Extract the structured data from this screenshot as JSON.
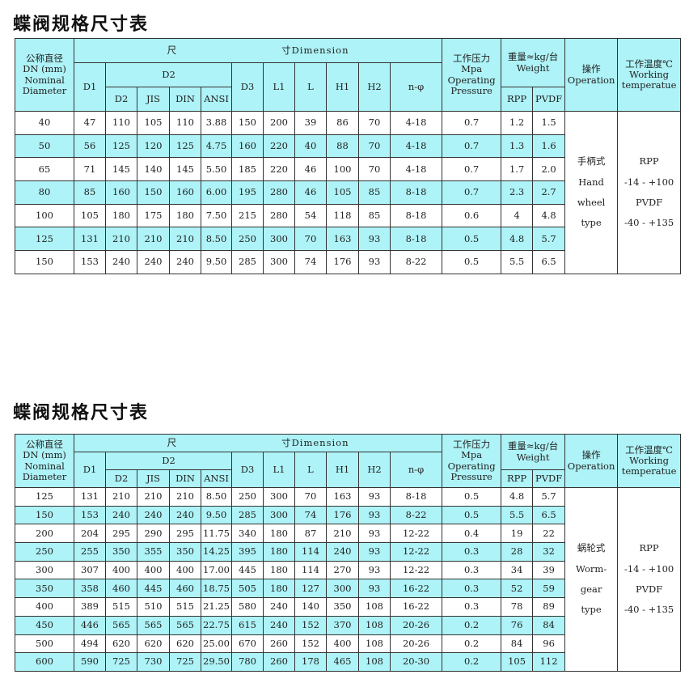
{
  "title": "蝶阀规格尺寸表",
  "header": {
    "dn": [
      "公称直径",
      "DN (mm)",
      "Nominal",
      "Diameter"
    ],
    "dimension_cn": "尺",
    "dimension": "寸Dimension",
    "d1": "D1",
    "d2_group": "D2",
    "d2": "D2",
    "jis": "JIS",
    "din": "DIN",
    "ansi": "ANSI",
    "d3": "D3",
    "l1": "L1",
    "l": "L",
    "h1": "H1",
    "h2": "H2",
    "n_phi": "n-φ",
    "pressure": [
      "工作压力",
      "Mpa",
      "Operating",
      "Pressure"
    ],
    "weight": [
      "重量≈kg/台",
      "Weight"
    ],
    "rpp": "RPP",
    "pvdf": "PVDF",
    "operation": [
      "操作",
      "Operation"
    ],
    "temperature": [
      "工作温度℃",
      "Working",
      "temperatue"
    ]
  },
  "colors": {
    "header_bg": "#aef3f7",
    "alt_row_bg": "#aef3f7"
  },
  "tables": [
    {
      "operation": [
        "手柄式",
        "Hand",
        "wheel",
        "type"
      ],
      "temperature": [
        "RPP",
        "-14 - +100",
        "PVDF",
        "-40 - +135"
      ],
      "rows": [
        [
          "40",
          "47",
          "110",
          "105",
          "110",
          "3.88",
          "150",
          "200",
          "39",
          "86",
          "70",
          "4-18",
          "0.7",
          "1.2",
          "1.5"
        ],
        [
          "50",
          "56",
          "125",
          "120",
          "125",
          "4.75",
          "160",
          "220",
          "40",
          "88",
          "70",
          "4-18",
          "0.7",
          "1.3",
          "1.6"
        ],
        [
          "65",
          "71",
          "145",
          "140",
          "145",
          "5.50",
          "185",
          "220",
          "46",
          "100",
          "70",
          "4-18",
          "0.7",
          "1.7",
          "2.0"
        ],
        [
          "80",
          "85",
          "160",
          "150",
          "160",
          "6.00",
          "195",
          "280",
          "46",
          "105",
          "85",
          "8-18",
          "0.7",
          "2.3",
          "2.7"
        ],
        [
          "100",
          "105",
          "180",
          "175",
          "180",
          "7.50",
          "215",
          "280",
          "54",
          "118",
          "85",
          "8-18",
          "0.6",
          "4",
          "4.8"
        ],
        [
          "125",
          "131",
          "210",
          "210",
          "210",
          "8.50",
          "250",
          "300",
          "70",
          "163",
          "93",
          "8-18",
          "0.5",
          "4.8",
          "5.7"
        ],
        [
          "150",
          "153",
          "240",
          "240",
          "240",
          "9.50",
          "285",
          "300",
          "74",
          "176",
          "93",
          "8-22",
          "0.5",
          "5.5",
          "6.5"
        ]
      ]
    },
    {
      "operation": [
        "蜗轮式",
        "Worm-",
        "gear",
        "type"
      ],
      "temperature": [
        "RPP",
        "-14 - +100",
        "PVDF",
        "-40 - +135"
      ],
      "rows": [
        [
          "125",
          "131",
          "210",
          "210",
          "210",
          "8.50",
          "250",
          "300",
          "70",
          "163",
          "93",
          "8-18",
          "0.5",
          "4.8",
          "5.7"
        ],
        [
          "150",
          "153",
          "240",
          "240",
          "240",
          "9.50",
          "285",
          "300",
          "74",
          "176",
          "93",
          "8-22",
          "0.5",
          "5.5",
          "6.5"
        ],
        [
          "200",
          "204",
          "295",
          "290",
          "295",
          "11.75",
          "340",
          "180",
          "87",
          "210",
          "93",
          "12-22",
          "0.4",
          "19",
          "22"
        ],
        [
          "250",
          "255",
          "350",
          "355",
          "350",
          "14.25",
          "395",
          "180",
          "114",
          "240",
          "93",
          "12-22",
          "0.3",
          "28",
          "32"
        ],
        [
          "300",
          "307",
          "400",
          "400",
          "400",
          "17.00",
          "445",
          "180",
          "114",
          "270",
          "93",
          "12-22",
          "0.3",
          "34",
          "39"
        ],
        [
          "350",
          "358",
          "460",
          "445",
          "460",
          "18.75",
          "505",
          "180",
          "127",
          "300",
          "93",
          "16-22",
          "0.3",
          "52",
          "59"
        ],
        [
          "400",
          "389",
          "515",
          "510",
          "515",
          "21.25",
          "580",
          "240",
          "140",
          "350",
          "108",
          "16-22",
          "0.3",
          "78",
          "89"
        ],
        [
          "450",
          "446",
          "565",
          "565",
          "565",
          "22.75",
          "615",
          "240",
          "152",
          "370",
          "108",
          "20-26",
          "0.2",
          "76",
          "84"
        ],
        [
          "500",
          "494",
          "620",
          "620",
          "620",
          "25.00",
          "670",
          "260",
          "152",
          "400",
          "108",
          "20-26",
          "0.2",
          "84",
          "96"
        ],
        [
          "600",
          "590",
          "725",
          "730",
          "725",
          "29.50",
          "780",
          "260",
          "178",
          "465",
          "108",
          "20-30",
          "0.2",
          "105",
          "112"
        ]
      ]
    }
  ]
}
